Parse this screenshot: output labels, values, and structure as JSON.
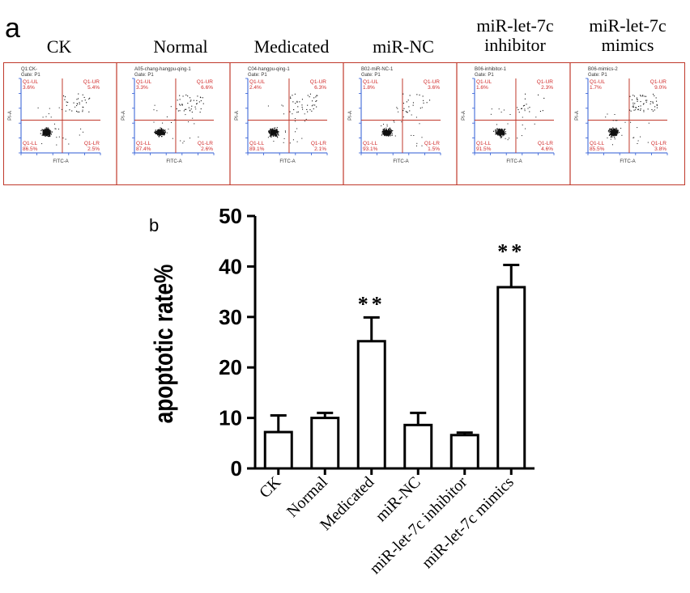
{
  "panel_a": {
    "letter": "a",
    "groups": [
      {
        "title": [
          "CK"
        ],
        "plot_header": "Q1:CK-",
        "gate": "Gate: P1",
        "quadrants": {
          "UL": "3.6%",
          "UR": "5.4%",
          "LL": "86.5%",
          "LR": "2.5%"
        },
        "color": "#d12b2b"
      },
      {
        "title": [
          "Normal"
        ],
        "plot_header": "A05-chang-hangpu-qing-1",
        "gate": "Gate: P1",
        "quadrants": {
          "UL": "3.3%",
          "UR": "6.6%",
          "LL": "87.4%",
          "LR": "2.6%"
        },
        "color": "#d12b2b"
      },
      {
        "title": [
          "Medicated"
        ],
        "plot_header": "C04-hangpu-qing-1",
        "gate": "Gate: P1",
        "quadrants": {
          "UL": "2.4%",
          "UR": "6.3%",
          "LL": "89.1%",
          "LR": "2.1%"
        },
        "color": "#d12b2b"
      },
      {
        "title": [
          "miR-NC"
        ],
        "plot_header": "B02-miR-NC-1",
        "gate": "Gate: P1",
        "quadrants": {
          "UL": "1.8%",
          "UR": "3.6%",
          "LL": "93.1%",
          "LR": "1.5%"
        },
        "color": "#d12b2b"
      },
      {
        "title": [
          "miR-let-7c",
          "inhibitor"
        ],
        "plot_header": "B06-inhibitor-1",
        "gate": "Gate: P1",
        "quadrants": {
          "UL": "1.6%",
          "UR": "2.3%",
          "LL": "91.5%",
          "LR": "4.6%"
        },
        "color": "#d12b2b"
      },
      {
        "title": [
          "miR-let-7c",
          "mimics"
        ],
        "plot_header": "B06-mimics-2",
        "gate": "Gate: P1",
        "quadrants": {
          "UL": "1.7%",
          "UR": "9.0%",
          "LL": "85.5%",
          "LR": "3.8%"
        },
        "color": "#d12b2b"
      }
    ],
    "quadrant_tags": {
      "UL": "Q1-UL",
      "UR": "Q1-UR",
      "LL": "Q1-LL",
      "LR": "Q1-LR"
    },
    "axis_x_label": "FITC-A",
    "axis_y_label": "PI-A",
    "frame_color": "#c0392b",
    "gate_line_color": "#c0392b",
    "axis_color": "#2e5bd6"
  },
  "panel_b": {
    "letter": "b"
  },
  "chart_data": {
    "type": "bar",
    "title": "",
    "xlabel": "",
    "ylabel": "apoptotic rate%",
    "categories": [
      "CK",
      "Normal",
      "Medicated",
      "miR-NC",
      "miR-let-7c inhibitor",
      "miR-let-7c mimics"
    ],
    "values": [
      7.2,
      10.0,
      25.2,
      8.6,
      6.6,
      35.9
    ],
    "errors": [
      3.3,
      1.0,
      4.7,
      2.4,
      0.5,
      4.4
    ],
    "annotations": [
      "",
      "",
      "**",
      "",
      "",
      "**"
    ],
    "ylim": [
      0,
      50
    ],
    "yticks": [
      0,
      10,
      20,
      30,
      40,
      50
    ],
    "grid": false,
    "legend": "none",
    "bar_fill": "#ffffff",
    "bar_edge": "#000000"
  }
}
